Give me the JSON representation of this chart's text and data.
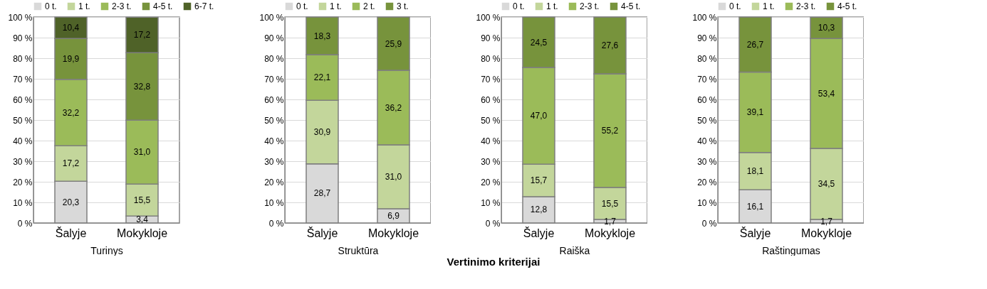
{
  "chart_data": [
    {
      "type": "bar",
      "stacked": true,
      "xlabel": "Turinys",
      "annotations": [
        "Vertinimo kriterijai"
      ],
      "categories": [
        "Šalyje",
        "Mokykloje"
      ],
      "ylim": [
        0,
        100
      ],
      "yticks": [
        {
          "value": 0,
          "label": "0 %"
        },
        {
          "value": 10,
          "label": "10 %"
        },
        {
          "value": 20,
          "label": "20 %"
        },
        {
          "value": 30,
          "label": "30 %"
        },
        {
          "value": 40,
          "label": "40 %"
        },
        {
          "value": 50,
          "label": "50 %"
        },
        {
          "value": 60,
          "label": "60 %"
        },
        {
          "value": 70,
          "label": "70 %"
        },
        {
          "value": 80,
          "label": "80 %"
        },
        {
          "value": 90,
          "label": "90 %"
        },
        {
          "value": 100,
          "label": "100 %"
        }
      ],
      "grid": "y",
      "legend": "top",
      "series": [
        {
          "name": "0 t.",
          "color": "#d9d9d9",
          "values": [
            20.3,
            3.4
          ],
          "value_labels": [
            "20,3",
            "3,4"
          ]
        },
        {
          "name": "1 t.",
          "color": "#c3d69b",
          "values": [
            17.2,
            15.5
          ],
          "value_labels": [
            "17,2",
            "15,5"
          ]
        },
        {
          "name": "2-3 t.",
          "color": "#9bbb59",
          "values": [
            32.2,
            31.0
          ],
          "value_labels": [
            "32,2",
            "31,0"
          ]
        },
        {
          "name": "4-5 t.",
          "color": "#77933c",
          "values": [
            19.9,
            32.8
          ],
          "value_labels": [
            "19,9",
            "32,8"
          ]
        },
        {
          "name": "6-7 t.",
          "color": "#4f6228",
          "values": [
            10.4,
            17.2
          ],
          "value_labels": [
            "10,4",
            "17,2"
          ]
        }
      ]
    },
    {
      "type": "bar",
      "stacked": true,
      "xlabel": "Struktūra",
      "categories": [
        "Šalyje",
        "Mokykloje"
      ],
      "ylim": [
        0,
        100
      ],
      "yticks": [
        {
          "value": 0,
          "label": "0 %"
        },
        {
          "value": 10,
          "label": "10 %"
        },
        {
          "value": 20,
          "label": "20 %"
        },
        {
          "value": 30,
          "label": "30 %"
        },
        {
          "value": 40,
          "label": "40 %"
        },
        {
          "value": 50,
          "label": "50 %"
        },
        {
          "value": 60,
          "label": "60 %"
        },
        {
          "value": 70,
          "label": "70 %"
        },
        {
          "value": 80,
          "label": "80 %"
        },
        {
          "value": 90,
          "label": "90 %"
        },
        {
          "value": 100,
          "label": "100 %"
        }
      ],
      "grid": "y",
      "legend": "top",
      "series": [
        {
          "name": "0 t.",
          "color": "#d9d9d9",
          "values": [
            28.7,
            6.9
          ],
          "value_labels": [
            "28,7",
            "6,9"
          ]
        },
        {
          "name": "1 t.",
          "color": "#c3d69b",
          "values": [
            30.9,
            31.0
          ],
          "value_labels": [
            "30,9",
            "31,0"
          ]
        },
        {
          "name": "2 t.",
          "color": "#9bbb59",
          "values": [
            22.1,
            36.2
          ],
          "value_labels": [
            "22,1",
            "36,2"
          ]
        },
        {
          "name": "3 t.",
          "color": "#77933c",
          "values": [
            18.3,
            25.9
          ],
          "value_labels": [
            "18,3",
            "25,9"
          ]
        }
      ]
    },
    {
      "type": "bar",
      "stacked": true,
      "xlabel": "Raiška",
      "categories": [
        "Šalyje",
        "Mokykloje"
      ],
      "ylim": [
        0,
        100
      ],
      "yticks": [
        {
          "value": 0,
          "label": "0 %"
        },
        {
          "value": 10,
          "label": "10 %"
        },
        {
          "value": 20,
          "label": "20 %"
        },
        {
          "value": 30,
          "label": "30 %"
        },
        {
          "value": 40,
          "label": "40 %"
        },
        {
          "value": 50,
          "label": "50 %"
        },
        {
          "value": 60,
          "label": "60 %"
        },
        {
          "value": 70,
          "label": "70 %"
        },
        {
          "value": 80,
          "label": "80 %"
        },
        {
          "value": 90,
          "label": "90 %"
        },
        {
          "value": 100,
          "label": "100 %"
        }
      ],
      "grid": "y",
      "legend": "top",
      "series": [
        {
          "name": "0 t.",
          "color": "#d9d9d9",
          "values": [
            12.8,
            1.7
          ],
          "value_labels": [
            "12,8",
            "1,7"
          ]
        },
        {
          "name": "1 t.",
          "color": "#c3d69b",
          "values": [
            15.7,
            15.5
          ],
          "value_labels": [
            "15,7",
            "15,5"
          ]
        },
        {
          "name": "2-3 t.",
          "color": "#9bbb59",
          "values": [
            47.0,
            55.2
          ],
          "value_labels": [
            "47,0",
            "55,2"
          ]
        },
        {
          "name": "4-5 t.",
          "color": "#77933c",
          "values": [
            24.5,
            27.6
          ],
          "value_labels": [
            "24,5",
            "27,6"
          ]
        }
      ]
    },
    {
      "type": "bar",
      "stacked": true,
      "xlabel": "Raštingumas",
      "categories": [
        "Šalyje",
        "Mokykloje"
      ],
      "ylim": [
        0,
        100
      ],
      "yticks": [
        {
          "value": 0,
          "label": "0 %"
        },
        {
          "value": 10,
          "label": "10 %"
        },
        {
          "value": 20,
          "label": "20 %"
        },
        {
          "value": 30,
          "label": "30 %"
        },
        {
          "value": 40,
          "label": "40 %"
        },
        {
          "value": 50,
          "label": "50 %"
        },
        {
          "value": 60,
          "label": "60 %"
        },
        {
          "value": 70,
          "label": "70 %"
        },
        {
          "value": 80,
          "label": "80 %"
        },
        {
          "value": 90,
          "label": "90 %"
        },
        {
          "value": 100,
          "label": "100 %"
        }
      ],
      "grid": "y",
      "legend": "top",
      "series": [
        {
          "name": "0 t.",
          "color": "#d9d9d9",
          "values": [
            16.1,
            1.7
          ],
          "value_labels": [
            "16,1",
            "1,7"
          ]
        },
        {
          "name": "1 t.",
          "color": "#c3d69b",
          "values": [
            18.1,
            34.5
          ],
          "value_labels": [
            "18,1",
            "34,5"
          ]
        },
        {
          "name": "2-3 t.",
          "color": "#9bbb59",
          "values": [
            39.1,
            53.4
          ],
          "value_labels": [
            "39,1",
            "53,4"
          ]
        },
        {
          "name": "4-5 t.",
          "color": "#77933c",
          "values": [
            26.7,
            10.3
          ],
          "value_labels": [
            "26,7",
            "10,3"
          ]
        }
      ]
    }
  ]
}
